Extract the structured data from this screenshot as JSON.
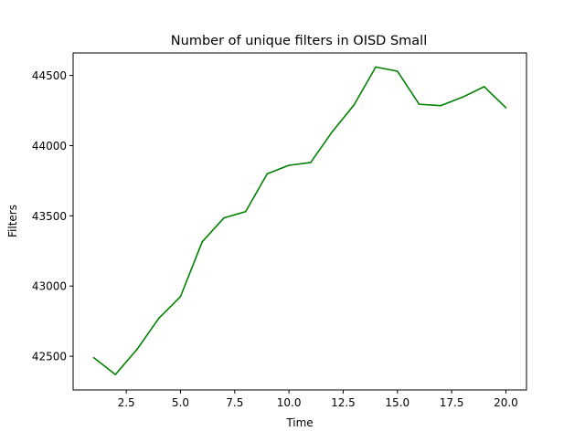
{
  "chart_data": {
    "type": "line",
    "title": "Number of unique filters in OISD Small",
    "xlabel": "Time",
    "ylabel": "Filters",
    "xlim": [
      0.05,
      20.95
    ],
    "ylim": [
      42260,
      44660
    ],
    "xticks": [
      2.5,
      5.0,
      7.5,
      10.0,
      12.5,
      15.0,
      17.5,
      20.0
    ],
    "xtick_labels": [
      "2.5",
      "5.0",
      "7.5",
      "10.0",
      "12.5",
      "15.0",
      "17.5",
      "20.0"
    ],
    "yticks": [
      42500,
      43000,
      43500,
      44000,
      44500
    ],
    "ytick_labels": [
      "42500",
      "43000",
      "43500",
      "44000",
      "44500"
    ],
    "grid": false,
    "line_color": "#008000",
    "series": [
      {
        "x": [
          1,
          2,
          3,
          4,
          5,
          6,
          7,
          8,
          9,
          10,
          11,
          12,
          13,
          14,
          15,
          16,
          17,
          18,
          19,
          20
        ],
        "values": [
          42490,
          42370,
          42550,
          42770,
          42925,
          43315,
          43485,
          43530,
          43800,
          43860,
          43880,
          44100,
          44290,
          44560,
          44530,
          44295,
          44285,
          44345,
          44420,
          44270
        ]
      }
    ]
  }
}
